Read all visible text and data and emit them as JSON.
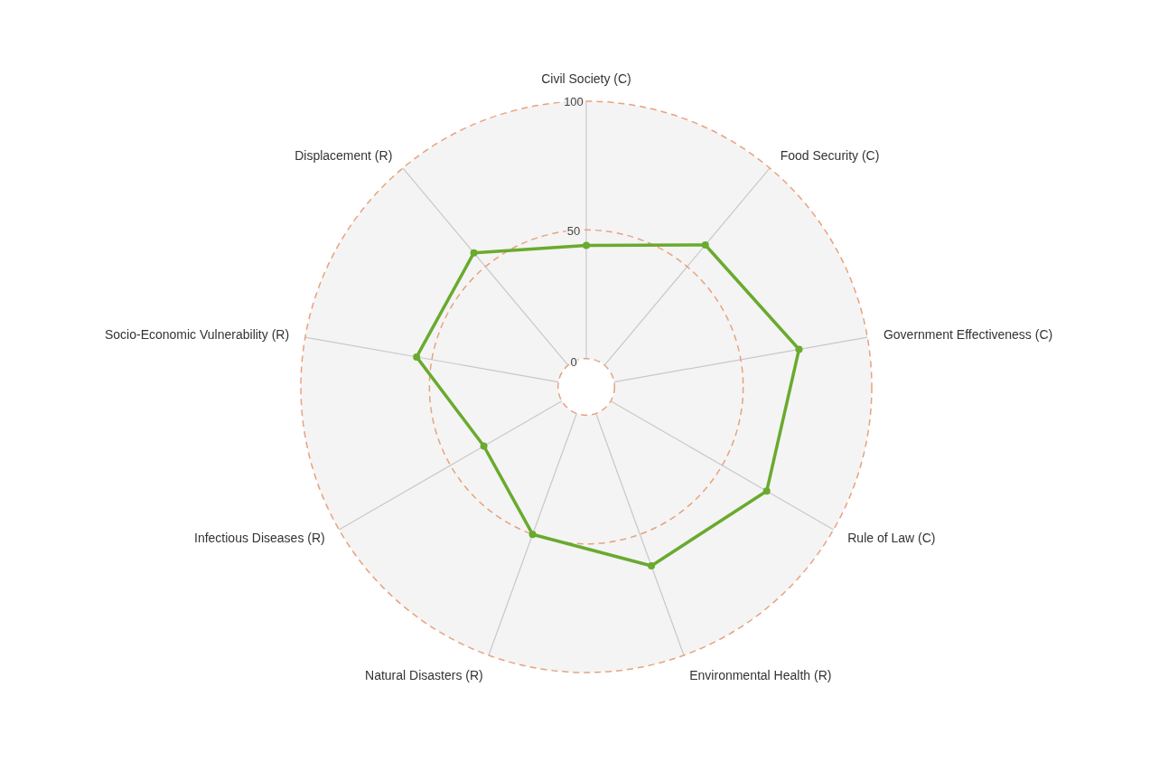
{
  "chart_data": {
    "type": "radar",
    "categories": [
      "Civil Society (C)",
      "Food Security (C)",
      "Government Effectiveness (C)",
      "Rule of Law (C)",
      "Environmental Health (R)",
      "Natural Disasters (R)",
      "Infectious Diseases (R)",
      "Socio-Economic Vulnerability (R)",
      "Displacement (R)"
    ],
    "series": [
      {
        "color": "#6aaa2e",
        "values": [
          44,
          61,
          73,
          70,
          63,
          50,
          35,
          56,
          57
        ]
      }
    ],
    "ylim": [
      -11,
      100
    ],
    "yticks": [
      0,
      50,
      100
    ],
    "marker": "circle",
    "grid": true
  }
}
